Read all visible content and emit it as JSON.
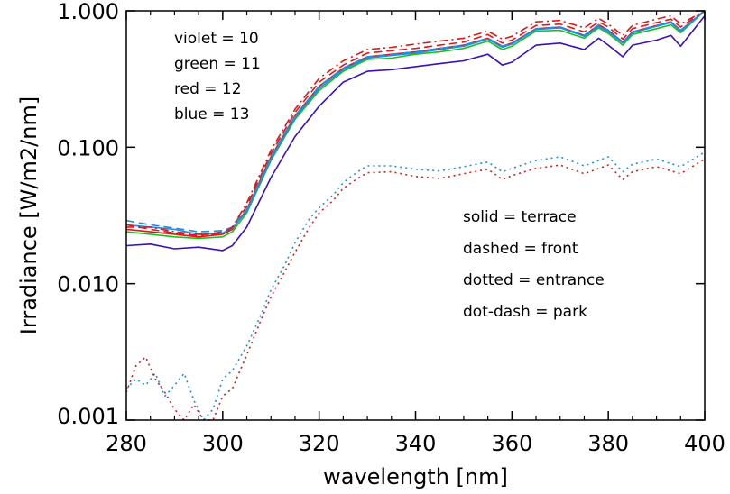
{
  "chart_data": {
    "type": "line",
    "title": "",
    "xlabel": "wavelength [nm]",
    "ylabel": "Irradiance [W/m2/nm]",
    "xlim": [
      280,
      400
    ],
    "ylim": [
      0.001,
      1.0
    ],
    "y_scale": "log",
    "x_ticks": [
      280,
      300,
      320,
      340,
      360,
      380,
      400
    ],
    "x_tick_labels": [
      "280",
      "300",
      "320",
      "340",
      "360",
      "380",
      "400"
    ],
    "y_ticks": [
      0.001,
      0.01,
      0.1,
      1.0
    ],
    "y_tick_labels": [
      "0.001",
      "0.010",
      "0.100",
      "1.000"
    ],
    "grid": false,
    "colors": {
      "violet": "#3a10b8",
      "green": "#1cc01c",
      "red": "#e01818",
      "blue": "#1e8ee6"
    },
    "legend_color": [
      "violet = 10",
      "green = 11",
      "red = 12",
      "blue = 13"
    ],
    "legend_style": [
      "solid = terrace",
      "dashed = front",
      "dotted = entrance",
      "dot-dash = park"
    ],
    "series": [
      {
        "color": "violet",
        "style": "solid",
        "x": [
          280,
          285,
          290,
          295,
          300,
          302,
          305,
          310,
          315,
          320,
          325,
          330,
          335,
          340,
          345,
          350,
          355,
          358,
          360,
          365,
          370,
          375,
          378,
          380,
          383,
          385,
          390,
          393,
          395,
          400
        ],
        "y": [
          0.019,
          0.0195,
          0.018,
          0.0185,
          0.0175,
          0.019,
          0.026,
          0.06,
          0.12,
          0.2,
          0.3,
          0.36,
          0.37,
          0.39,
          0.41,
          0.43,
          0.48,
          0.4,
          0.42,
          0.56,
          0.58,
          0.52,
          0.63,
          0.56,
          0.46,
          0.56,
          0.61,
          0.66,
          0.55,
          0.92
        ]
      },
      {
        "color": "green",
        "style": "solid",
        "x": [
          280,
          285,
          290,
          295,
          300,
          302,
          305,
          310,
          315,
          320,
          325,
          330,
          335,
          340,
          345,
          350,
          355,
          358,
          360,
          365,
          370,
          375,
          378,
          380,
          383,
          385,
          390,
          393,
          395,
          400
        ],
        "y": [
          0.024,
          0.023,
          0.022,
          0.0215,
          0.022,
          0.024,
          0.033,
          0.08,
          0.16,
          0.26,
          0.36,
          0.44,
          0.45,
          0.48,
          0.5,
          0.53,
          0.6,
          0.52,
          0.55,
          0.71,
          0.72,
          0.63,
          0.75,
          0.68,
          0.56,
          0.67,
          0.74,
          0.79,
          0.69,
          1.0
        ]
      },
      {
        "color": "red",
        "style": "solid",
        "x": [
          280,
          285,
          290,
          295,
          300,
          302,
          305,
          310,
          315,
          320,
          325,
          330,
          335,
          340,
          345,
          350,
          355,
          358,
          360,
          365,
          370,
          375,
          378,
          380,
          383,
          385,
          390,
          393,
          395,
          400
        ],
        "y": [
          0.025,
          0.024,
          0.023,
          0.022,
          0.023,
          0.025,
          0.035,
          0.085,
          0.17,
          0.28,
          0.38,
          0.46,
          0.48,
          0.5,
          0.53,
          0.56,
          0.63,
          0.55,
          0.58,
          0.74,
          0.76,
          0.66,
          0.79,
          0.72,
          0.59,
          0.7,
          0.78,
          0.83,
          0.72,
          1.0
        ]
      },
      {
        "color": "blue",
        "style": "solid",
        "x": [
          280,
          285,
          290,
          295,
          300,
          302,
          305,
          310,
          315,
          320,
          325,
          330,
          335,
          340,
          345,
          350,
          355,
          358,
          360,
          365,
          370,
          375,
          378,
          380,
          383,
          385,
          390,
          393,
          395,
          400
        ],
        "y": [
          0.027,
          0.026,
          0.025,
          0.023,
          0.0235,
          0.0255,
          0.034,
          0.082,
          0.165,
          0.27,
          0.37,
          0.45,
          0.47,
          0.49,
          0.52,
          0.55,
          0.62,
          0.54,
          0.57,
          0.73,
          0.75,
          0.65,
          0.77,
          0.7,
          0.58,
          0.69,
          0.77,
          0.82,
          0.71,
          1.0
        ]
      },
      {
        "color": "red",
        "style": "dashed",
        "x": [
          280,
          285,
          290,
          295,
          300,
          302,
          305,
          310,
          315,
          320,
          325,
          330,
          335,
          340,
          345,
          350,
          355,
          358,
          360,
          365,
          370,
          375,
          378,
          380,
          383,
          385,
          390,
          393,
          395,
          400
        ],
        "y": [
          0.027,
          0.025,
          0.0235,
          0.0225,
          0.024,
          0.026,
          0.037,
          0.09,
          0.18,
          0.3,
          0.4,
          0.49,
          0.51,
          0.53,
          0.56,
          0.59,
          0.67,
          0.58,
          0.61,
          0.78,
          0.8,
          0.7,
          0.83,
          0.76,
          0.62,
          0.74,
          0.82,
          0.87,
          0.76,
          1.0
        ]
      },
      {
        "color": "blue",
        "style": "dashed",
        "x": [
          280,
          285,
          290,
          295,
          300,
          302,
          305,
          310,
          315,
          320,
          325,
          330,
          335,
          340,
          345,
          350,
          355,
          358,
          360,
          365,
          370,
          375,
          378,
          380,
          383,
          385,
          390,
          393,
          395,
          400
        ],
        "y": [
          0.029,
          0.027,
          0.0255,
          0.024,
          0.0245,
          0.026,
          0.035,
          0.085,
          0.17,
          0.28,
          0.38,
          0.46,
          0.48,
          0.5,
          0.53,
          0.56,
          0.63,
          0.55,
          0.58,
          0.74,
          0.76,
          0.66,
          0.79,
          0.72,
          0.59,
          0.7,
          0.78,
          0.83,
          0.72,
          1.0
        ]
      },
      {
        "color": "red",
        "style": "dot-dash",
        "x": [
          280,
          285,
          290,
          295,
          300,
          302,
          305,
          310,
          315,
          320,
          325,
          330,
          335,
          340,
          345,
          350,
          355,
          358,
          360,
          365,
          370,
          375,
          378,
          380,
          383,
          385,
          390,
          393,
          395,
          400
        ],
        "y": [
          0.026,
          0.026,
          0.024,
          0.023,
          0.023,
          0.026,
          0.039,
          0.095,
          0.19,
          0.32,
          0.43,
          0.52,
          0.54,
          0.57,
          0.6,
          0.63,
          0.71,
          0.62,
          0.65,
          0.83,
          0.85,
          0.75,
          0.88,
          0.8,
          0.66,
          0.78,
          0.87,
          0.92,
          0.8,
          1.0
        ]
      },
      {
        "color": "blue",
        "style": "dotted",
        "x": [
          280,
          282,
          284,
          286,
          288,
          290,
          292,
          294,
          296,
          298,
          300,
          302,
          305,
          308,
          310,
          313,
          315,
          318,
          320,
          323,
          325,
          328,
          330,
          335,
          340,
          345,
          350,
          355,
          358,
          360,
          365,
          370,
          375,
          380,
          383,
          385,
          390,
          395,
          400
        ],
        "y": [
          0.0017,
          0.002,
          0.0018,
          0.0022,
          0.0015,
          0.0018,
          0.0022,
          0.0014,
          0.0009,
          0.0012,
          0.002,
          0.0023,
          0.0035,
          0.006,
          0.009,
          0.014,
          0.02,
          0.03,
          0.036,
          0.045,
          0.055,
          0.066,
          0.073,
          0.073,
          0.069,
          0.067,
          0.072,
          0.078,
          0.066,
          0.07,
          0.08,
          0.085,
          0.073,
          0.085,
          0.066,
          0.075,
          0.082,
          0.072,
          0.092
        ]
      },
      {
        "color": "red",
        "style": "dotted",
        "x": [
          280,
          282,
          284,
          286,
          288,
          290,
          292,
          294,
          296,
          298,
          300,
          302,
          305,
          308,
          310,
          313,
          315,
          318,
          320,
          323,
          325,
          328,
          330,
          335,
          340,
          345,
          350,
          355,
          358,
          360,
          365,
          370,
          375,
          380,
          383,
          385,
          390,
          395,
          400
        ],
        "y": [
          0.0016,
          0.0025,
          0.0029,
          0.002,
          0.0016,
          0.0012,
          0.001,
          0.0013,
          0.0009,
          0.0009,
          0.0015,
          0.0017,
          0.003,
          0.0055,
          0.008,
          0.0125,
          0.017,
          0.026,
          0.033,
          0.041,
          0.05,
          0.059,
          0.065,
          0.066,
          0.061,
          0.059,
          0.064,
          0.069,
          0.058,
          0.062,
          0.07,
          0.074,
          0.064,
          0.074,
          0.058,
          0.066,
          0.072,
          0.064,
          0.082
        ]
      }
    ]
  }
}
